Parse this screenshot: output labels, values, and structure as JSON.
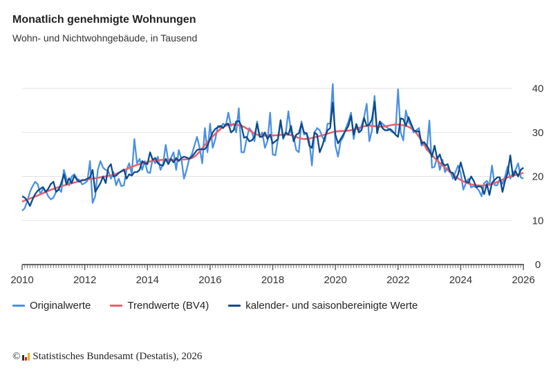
{
  "header": {
    "title": "Monatlich genehmigte Wohnungen",
    "subtitle": "Wohn- und Nichtwohngebäude, in Tausend"
  },
  "chart_data": {
    "type": "line",
    "title": "Monatlich genehmigte Wohnungen",
    "subtitle": "Wohn- und Nichtwohngebäude, in Tausend",
    "xlabel": "",
    "ylabel": "",
    "xlim": [
      "2010-01",
      "2026-01"
    ],
    "ylim": [
      0,
      42
    ],
    "x_ticks": [
      "2010",
      "2012",
      "2014",
      "2016",
      "2018",
      "2020",
      "2022",
      "2024",
      "2026"
    ],
    "y_ticks": [
      "0",
      "10",
      "20",
      "30",
      "40"
    ],
    "y_axis_side": "right",
    "grid": true,
    "legend_position": "bottom",
    "series": [
      {
        "name": "Originalwerte",
        "color": "#4a90e2",
        "start": "2010-01",
        "frequency": "monthly",
        "values": [
          12.2,
          12.8,
          14.5,
          16.5,
          17.8,
          18.8,
          18.2,
          16,
          17.2,
          16.8,
          15.5,
          14.8,
          15.2,
          16.5,
          17.2,
          16.5,
          21.5,
          19.5,
          18,
          20,
          20.5,
          19.5,
          19.2,
          18.2,
          18.5,
          19,
          23.5,
          14,
          15.5,
          21.5,
          23.5,
          22,
          21.5,
          21.2,
          19.5,
          21,
          18,
          19.5,
          17.8,
          18,
          21.5,
          23,
          20.5,
          28.5,
          23,
          24,
          21.5,
          23.5,
          21,
          20.8,
          24,
          23,
          24.5,
          21.5,
          22.8,
          27.2,
          23.5,
          24.2,
          25.5,
          21.5,
          26,
          24,
          19.5,
          21.5,
          24,
          25,
          27,
          29,
          26.5,
          23,
          31,
          25.5,
          32,
          26.5,
          28.5,
          31.5,
          31,
          32,
          31.5,
          34.5,
          31.5,
          32,
          30,
          35.5,
          25.5,
          25.5,
          28.5,
          31,
          30.2,
          28,
          32.5,
          29,
          30,
          26.5,
          28,
          34.5,
          25,
          24.8,
          28.5,
          32.5,
          28.5,
          30,
          34.8,
          30,
          29,
          26,
          25.5,
          32.5,
          29.5,
          29.8,
          28,
          22.5,
          30,
          31,
          30.5,
          29,
          28,
          32,
          32,
          41,
          27,
          24.5,
          28,
          29,
          31,
          32.5,
          34.5,
          28.5,
          32,
          30.5,
          31.5,
          33.5,
          36.5,
          28,
          30.5,
          38.3,
          30,
          32.5,
          32,
          31.5,
          31,
          30.5,
          30,
          29.8,
          39.8,
          30,
          28.2,
          35,
          32.5,
          31.5,
          30,
          30.5,
          31,
          27,
          27.5,
          26,
          32.7,
          22,
          22.2,
          24.5,
          21.5,
          23.8,
          21,
          22,
          21.2,
          19.5,
          21,
          22.5,
          20.8,
          17,
          18.5,
          19.5,
          17.5,
          17.8,
          17.5,
          16.8,
          15.5,
          18.5,
          19,
          18,
          22.5,
          18,
          18,
          19.5,
          18.3,
          20,
          22.3,
          19.5,
          20.8,
          21.5,
          23,
          19.8,
          19.5
        ]
      },
      {
        "name": "Trendwerte (BV4)",
        "color": "#e8606e",
        "x": [
          "2010-01",
          "2010-07",
          "2011-01",
          "2011-07",
          "2012-01",
          "2012-07",
          "2013-01",
          "2013-07",
          "2014-01",
          "2014-07",
          "2015-01",
          "2015-07",
          "2016-01",
          "2016-07",
          "2017-01",
          "2017-07",
          "2018-01",
          "2018-07",
          "2019-01",
          "2019-07",
          "2020-01",
          "2020-07",
          "2021-01",
          "2021-07",
          "2022-01",
          "2022-07",
          "2023-01",
          "2023-07",
          "2024-01",
          "2024-07",
          "2025-01",
          "2025-07",
          "2026-01"
        ],
        "values": [
          14.3,
          15.7,
          17.2,
          18.3,
          19.2,
          19.8,
          20.6,
          22.2,
          23.3,
          23.8,
          23.8,
          24.5,
          28.5,
          31.5,
          31.5,
          29.5,
          29.3,
          29.5,
          28.5,
          29.2,
          30.2,
          30.5,
          31.5,
          31.3,
          31.8,
          30.5,
          25.5,
          22,
          19.2,
          18,
          18.3,
          19.8,
          20.8
        ]
      },
      {
        "name": "kalender- und saisonbereinigte Werte",
        "color": "#0b4a8b",
        "start": "2010-01",
        "frequency": "monthly",
        "values": [
          15.5,
          15.2,
          14.5,
          13.3,
          14.8,
          16,
          16.8,
          17.2,
          17.6,
          16.5,
          17.2,
          18.3,
          18.8,
          16.5,
          17,
          18.5,
          20.5,
          18.2,
          19.6,
          18.5,
          20.2,
          19.2,
          18.8,
          19.2,
          19.2,
          19.5,
          19.8,
          21.5,
          16.5,
          17.5,
          18.5,
          20,
          18.5,
          22,
          22.8,
          20,
          20.2,
          20.8,
          21.2,
          21.6,
          19.5,
          20.5,
          20.2,
          21,
          21,
          21.5,
          23.5,
          23,
          22.8,
          25.5,
          23.8,
          24.2,
          23,
          22.6,
          22.5,
          24,
          22.8,
          24,
          23.2,
          24.2,
          23.5,
          24.2,
          24.5,
          24.3,
          24,
          24.5,
          25.2,
          26,
          26.2,
          26.2,
          26.2,
          27,
          28.5,
          30,
          30.8,
          31.2,
          31.5,
          31,
          31.8,
          32,
          30,
          30.5,
          32.5,
          32.6,
          31.5,
          28.8,
          29,
          28,
          28.2,
          29,
          32,
          29,
          29,
          30,
          28.5,
          29.5,
          27.5,
          28,
          28.5,
          32.8,
          28.8,
          30,
          29.5,
          31.5,
          28,
          29.5,
          29.8,
          32,
          30,
          29.8,
          27,
          26.5,
          30,
          29.5,
          25.5,
          27,
          29,
          30.5,
          31,
          36.8,
          29.5,
          27.5,
          28.5,
          29.5,
          30.5,
          31.5,
          33.8,
          29.5,
          31.8,
          30,
          30.5,
          33.3,
          31.5,
          31.8,
          33,
          37,
          29.8,
          32.5,
          31,
          30.5,
          30.5,
          30.8,
          30.2,
          29.5,
          29,
          33.2,
          33,
          31.5,
          33.5,
          32,
          30.5,
          30.2,
          30.3,
          27.5,
          27.8,
          27,
          26,
          24.5,
          27,
          24,
          25,
          23,
          22.5,
          22.8,
          21,
          20.8,
          19.2,
          20.5,
          23.2,
          21,
          18.8,
          18.6,
          20,
          19,
          17.5,
          17.8,
          17.6,
          16,
          18.3,
          15.8,
          18.6,
          19.2,
          19.8,
          19.8,
          16.5,
          19,
          20.8,
          24.8,
          20,
          21.2,
          20,
          21.5,
          22
        ]
      }
    ]
  },
  "legend": {
    "items": [
      {
        "label": "Originalwerte",
        "color": "#4a90e2"
      },
      {
        "label": "Trendwerte (BV4)",
        "color": "#e8606e"
      },
      {
        "label": "kalender- und saisonbereinigte Werte",
        "color": "#0b4a8b"
      }
    ]
  },
  "footer": {
    "copyright_symbol": "©",
    "source": "Statistisches Bundesamt (Destatis), 2026",
    "logo_text": "Destatis"
  }
}
